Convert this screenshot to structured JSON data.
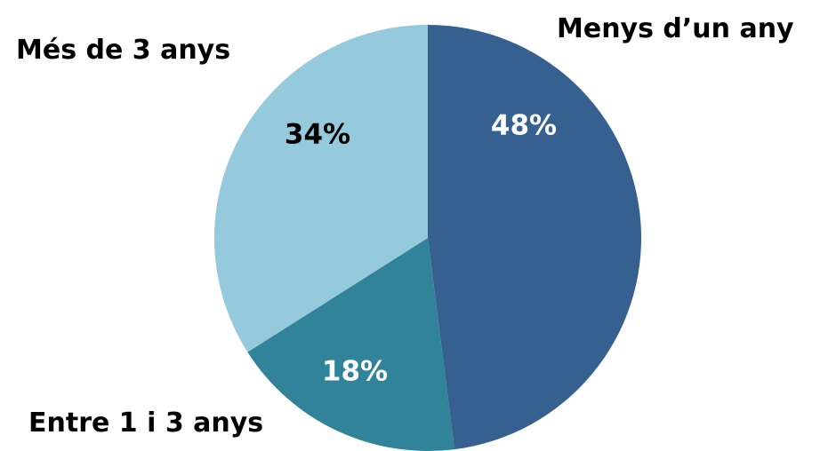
{
  "chart_data": {
    "type": "pie",
    "title": "",
    "slices": [
      {
        "label": "Menys d’un any",
        "value": 48,
        "value_label": "48%",
        "color": "#36608f",
        "label_color": "#ffffff"
      },
      {
        "label": "Entre 1 i 3 anys",
        "value": 18,
        "value_label": "18%",
        "color": "#31839a",
        "label_color": "#ffffff"
      },
      {
        "label": "Més de 3 anys",
        "value": 34,
        "value_label": "34%",
        "color": "#94cadb",
        "label_color": "#000000"
      }
    ],
    "start_angle": "12 o'clock",
    "direction": "clockwise",
    "legend": "none (category labels placed beside slices)"
  }
}
